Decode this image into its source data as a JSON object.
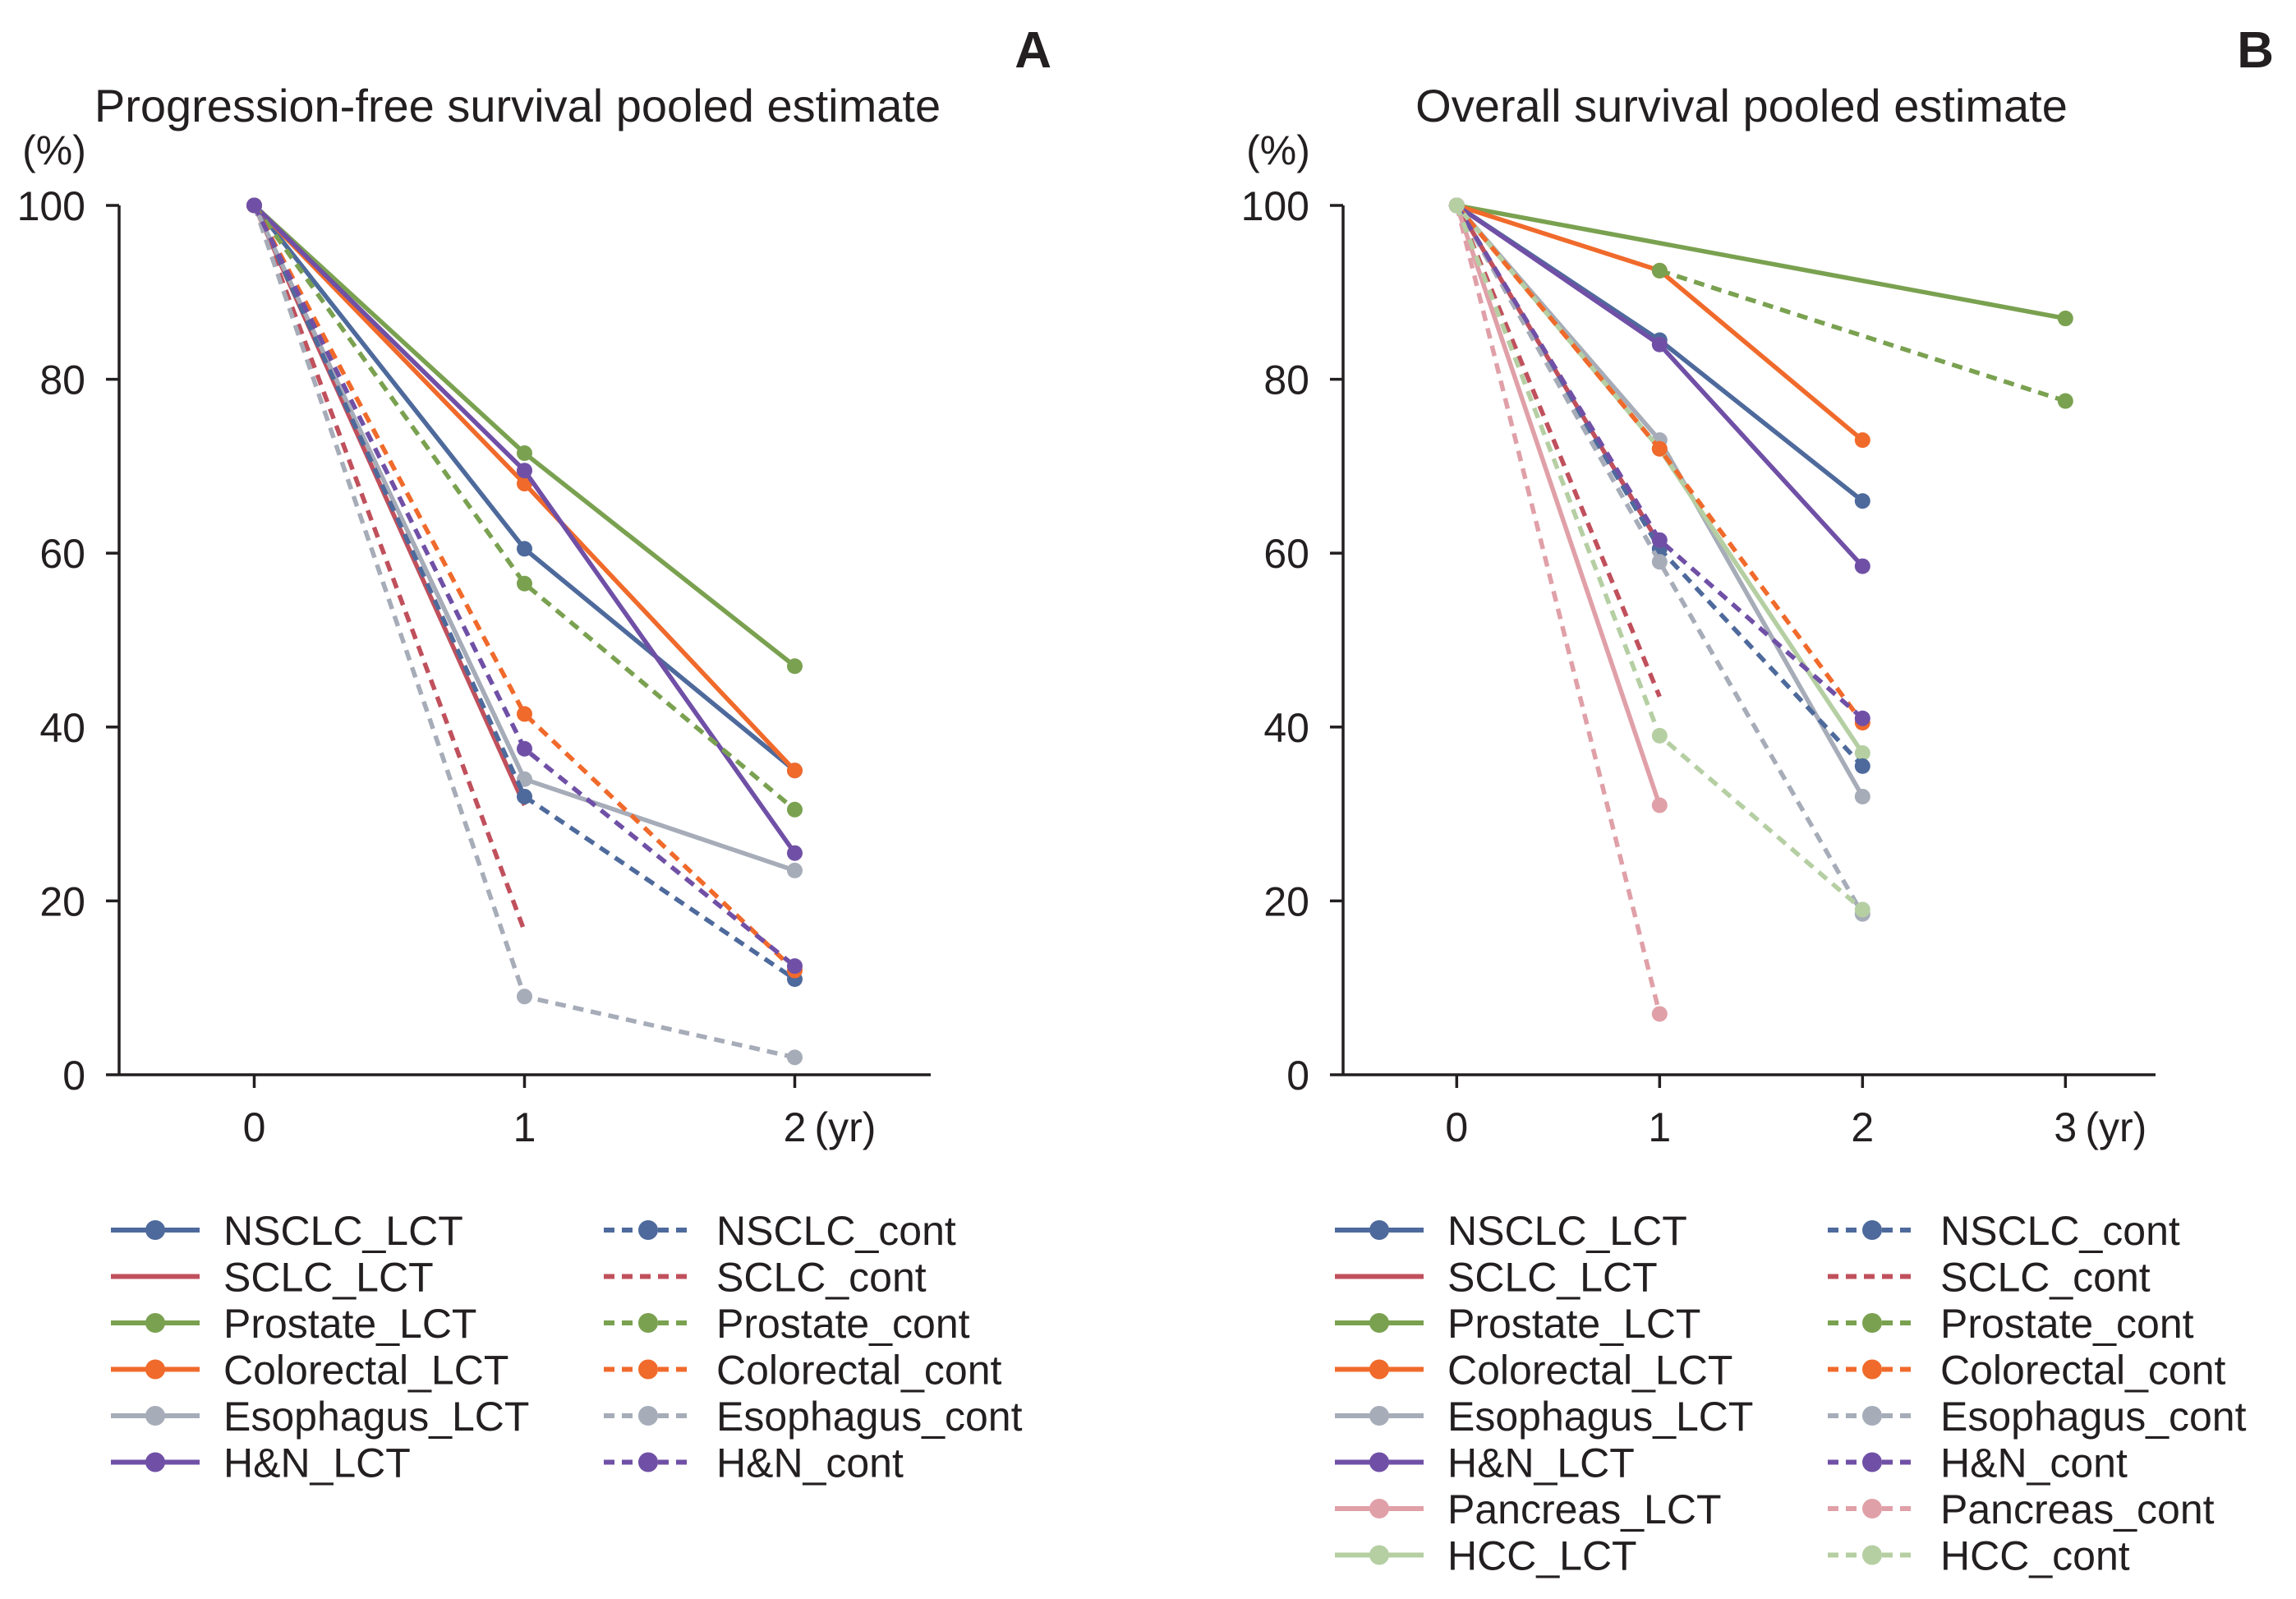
{
  "chart_data": [
    {
      "panel": "A",
      "type": "line",
      "title": "Progression-free survival pooled estimate",
      "ylabel": "(%)",
      "xlabel": "(yr)",
      "x_ticks": [
        "0",
        "1",
        "2"
      ],
      "y_ticks": [
        "0",
        "20",
        "40",
        "60",
        "80",
        "100"
      ],
      "xlim": [
        -0.5,
        2.5
      ],
      "ylim": [
        0,
        100
      ],
      "legend_position": "bottom",
      "series": [
        {
          "name": "NSCLC_LCT",
          "color": "#4e6a9c",
          "dashed": false,
          "markers": true,
          "x": [
            0,
            1,
            2
          ],
          "y": [
            100,
            60.5,
            35
          ]
        },
        {
          "name": "SCLC_LCT",
          "color": "#c0505c",
          "dashed": false,
          "markers": false,
          "x": [
            0,
            1
          ],
          "y": [
            100,
            31
          ]
        },
        {
          "name": "Prostate_LCT",
          "color": "#7aa150",
          "dashed": false,
          "markers": true,
          "x": [
            0,
            1,
            2
          ],
          "y": [
            100,
            71.5,
            47
          ]
        },
        {
          "name": "Colorectal_LCT",
          "color": "#f06a2b",
          "dashed": false,
          "markers": true,
          "x": [
            0,
            1,
            2
          ],
          "y": [
            100,
            68,
            35
          ]
        },
        {
          "name": "Esophagus_LCT",
          "color": "#a6acb8",
          "dashed": false,
          "markers": true,
          "x": [
            0,
            1,
            2
          ],
          "y": [
            100,
            34,
            23.5
          ]
        },
        {
          "name": "H&N_LCT",
          "color": "#7050a6",
          "dashed": false,
          "markers": true,
          "x": [
            0,
            1,
            2
          ],
          "y": [
            100,
            69.5,
            25.5
          ]
        },
        {
          "name": "NSCLC_cont",
          "color": "#4e6a9c",
          "dashed": true,
          "markers": true,
          "x": [
            0,
            1,
            2
          ],
          "y": [
            100,
            32,
            11
          ]
        },
        {
          "name": "SCLC_cont",
          "color": "#c0505c",
          "dashed": true,
          "markers": false,
          "x": [
            0,
            1
          ],
          "y": [
            100,
            16.5
          ]
        },
        {
          "name": "Prostate_cont",
          "color": "#7aa150",
          "dashed": true,
          "markers": true,
          "x": [
            0,
            1,
            2
          ],
          "y": [
            100,
            56.5,
            30.5
          ]
        },
        {
          "name": "Colorectal_cont",
          "color": "#f06a2b",
          "dashed": true,
          "markers": true,
          "x": [
            0,
            1,
            2
          ],
          "y": [
            100,
            41.5,
            12
          ]
        },
        {
          "name": "Esophagus_cont",
          "color": "#a6acb8",
          "dashed": true,
          "markers": true,
          "x": [
            0,
            1,
            2
          ],
          "y": [
            100,
            9,
            2
          ]
        },
        {
          "name": "H&N_cont",
          "color": "#7050a6",
          "dashed": true,
          "markers": true,
          "x": [
            0,
            1,
            2
          ],
          "y": [
            100,
            37.5,
            12.5
          ]
        }
      ]
    },
    {
      "panel": "B",
      "type": "line",
      "title": "Overall survival pooled estimate",
      "ylabel": "(%)",
      "xlabel": "(yr)",
      "x_ticks": [
        "0",
        "1",
        "2",
        "3"
      ],
      "y_ticks": [
        "0",
        "20",
        "40",
        "60",
        "80",
        "100"
      ],
      "xlim": [
        -0.56,
        3.5
      ],
      "ylim": [
        0,
        100
      ],
      "legend_position": "bottom",
      "series": [
        {
          "name": "NSCLC_LCT",
          "color": "#4e6a9c",
          "dashed": false,
          "markers": true,
          "x": [
            0,
            1,
            2
          ],
          "y": [
            100,
            84.5,
            66
          ]
        },
        {
          "name": "SCLC_LCT",
          "color": "#c0505c",
          "dashed": false,
          "markers": false,
          "x": [
            0,
            1
          ],
          "y": [
            100,
            61
          ]
        },
        {
          "name": "Prostate_LCT",
          "color": "#7aa150",
          "dashed": false,
          "markers": true,
          "x": [
            0,
            3
          ],
          "y": [
            100,
            87
          ]
        },
        {
          "name": "Colorectal_LCT",
          "color": "#f06a2b",
          "dashed": false,
          "markers": true,
          "x": [
            0,
            1,
            2
          ],
          "y": [
            100,
            92.5,
            73
          ]
        },
        {
          "name": "Esophagus_LCT",
          "color": "#a6acb8",
          "dashed": false,
          "markers": true,
          "x": [
            0,
            1,
            2
          ],
          "y": [
            100,
            73,
            32
          ]
        },
        {
          "name": "H&N_LCT",
          "color": "#7050a6",
          "dashed": false,
          "markers": true,
          "x": [
            0,
            1,
            2
          ],
          "y": [
            100,
            84,
            58.5
          ]
        },
        {
          "name": "Pancreas_LCT",
          "color": "#e0a0a8",
          "dashed": false,
          "markers": true,
          "x": [
            0,
            1
          ],
          "y": [
            100,
            31
          ]
        },
        {
          "name": "HCC_LCT",
          "color": "#b5cfa3",
          "dashed": false,
          "markers": true,
          "x": [
            0,
            1,
            2
          ],
          "y": [
            100,
            72,
            37
          ]
        },
        {
          "name": "NSCLC_cont",
          "color": "#4e6a9c",
          "dashed": true,
          "markers": true,
          "x": [
            0,
            1,
            2
          ],
          "y": [
            100,
            60.5,
            35.5
          ]
        },
        {
          "name": "SCLC_cont",
          "color": "#c0505c",
          "dashed": true,
          "markers": false,
          "x": [
            0,
            1
          ],
          "y": [
            100,
            43.5
          ]
        },
        {
          "name": "Prostate_cont",
          "color": "#7aa150",
          "dashed": true,
          "markers": true,
          "x": [
            1,
            3
          ],
          "y": [
            92.5,
            77.5
          ]
        },
        {
          "name": "Colorectal_cont",
          "color": "#f06a2b",
          "dashed": true,
          "markers": true,
          "x": [
            0,
            1,
            2
          ],
          "y": [
            100,
            72,
            40.5
          ]
        },
        {
          "name": "Esophagus_cont",
          "color": "#a6acb8",
          "dashed": true,
          "markers": true,
          "x": [
            0,
            1,
            2
          ],
          "y": [
            100,
            59,
            18.5
          ]
        },
        {
          "name": "H&N_cont",
          "color": "#7050a6",
          "dashed": true,
          "markers": true,
          "x": [
            0,
            1,
            2
          ],
          "y": [
            100,
            61.5,
            41
          ]
        },
        {
          "name": "Pancreas_cont",
          "color": "#e0a0a8",
          "dashed": true,
          "markers": true,
          "x": [
            0,
            1
          ],
          "y": [
            100,
            7
          ]
        },
        {
          "name": "HCC_cont",
          "color": "#b5cfa3",
          "dashed": true,
          "markers": true,
          "x": [
            0,
            1,
            2
          ],
          "y": [
            100,
            39,
            19
          ]
        }
      ]
    }
  ]
}
